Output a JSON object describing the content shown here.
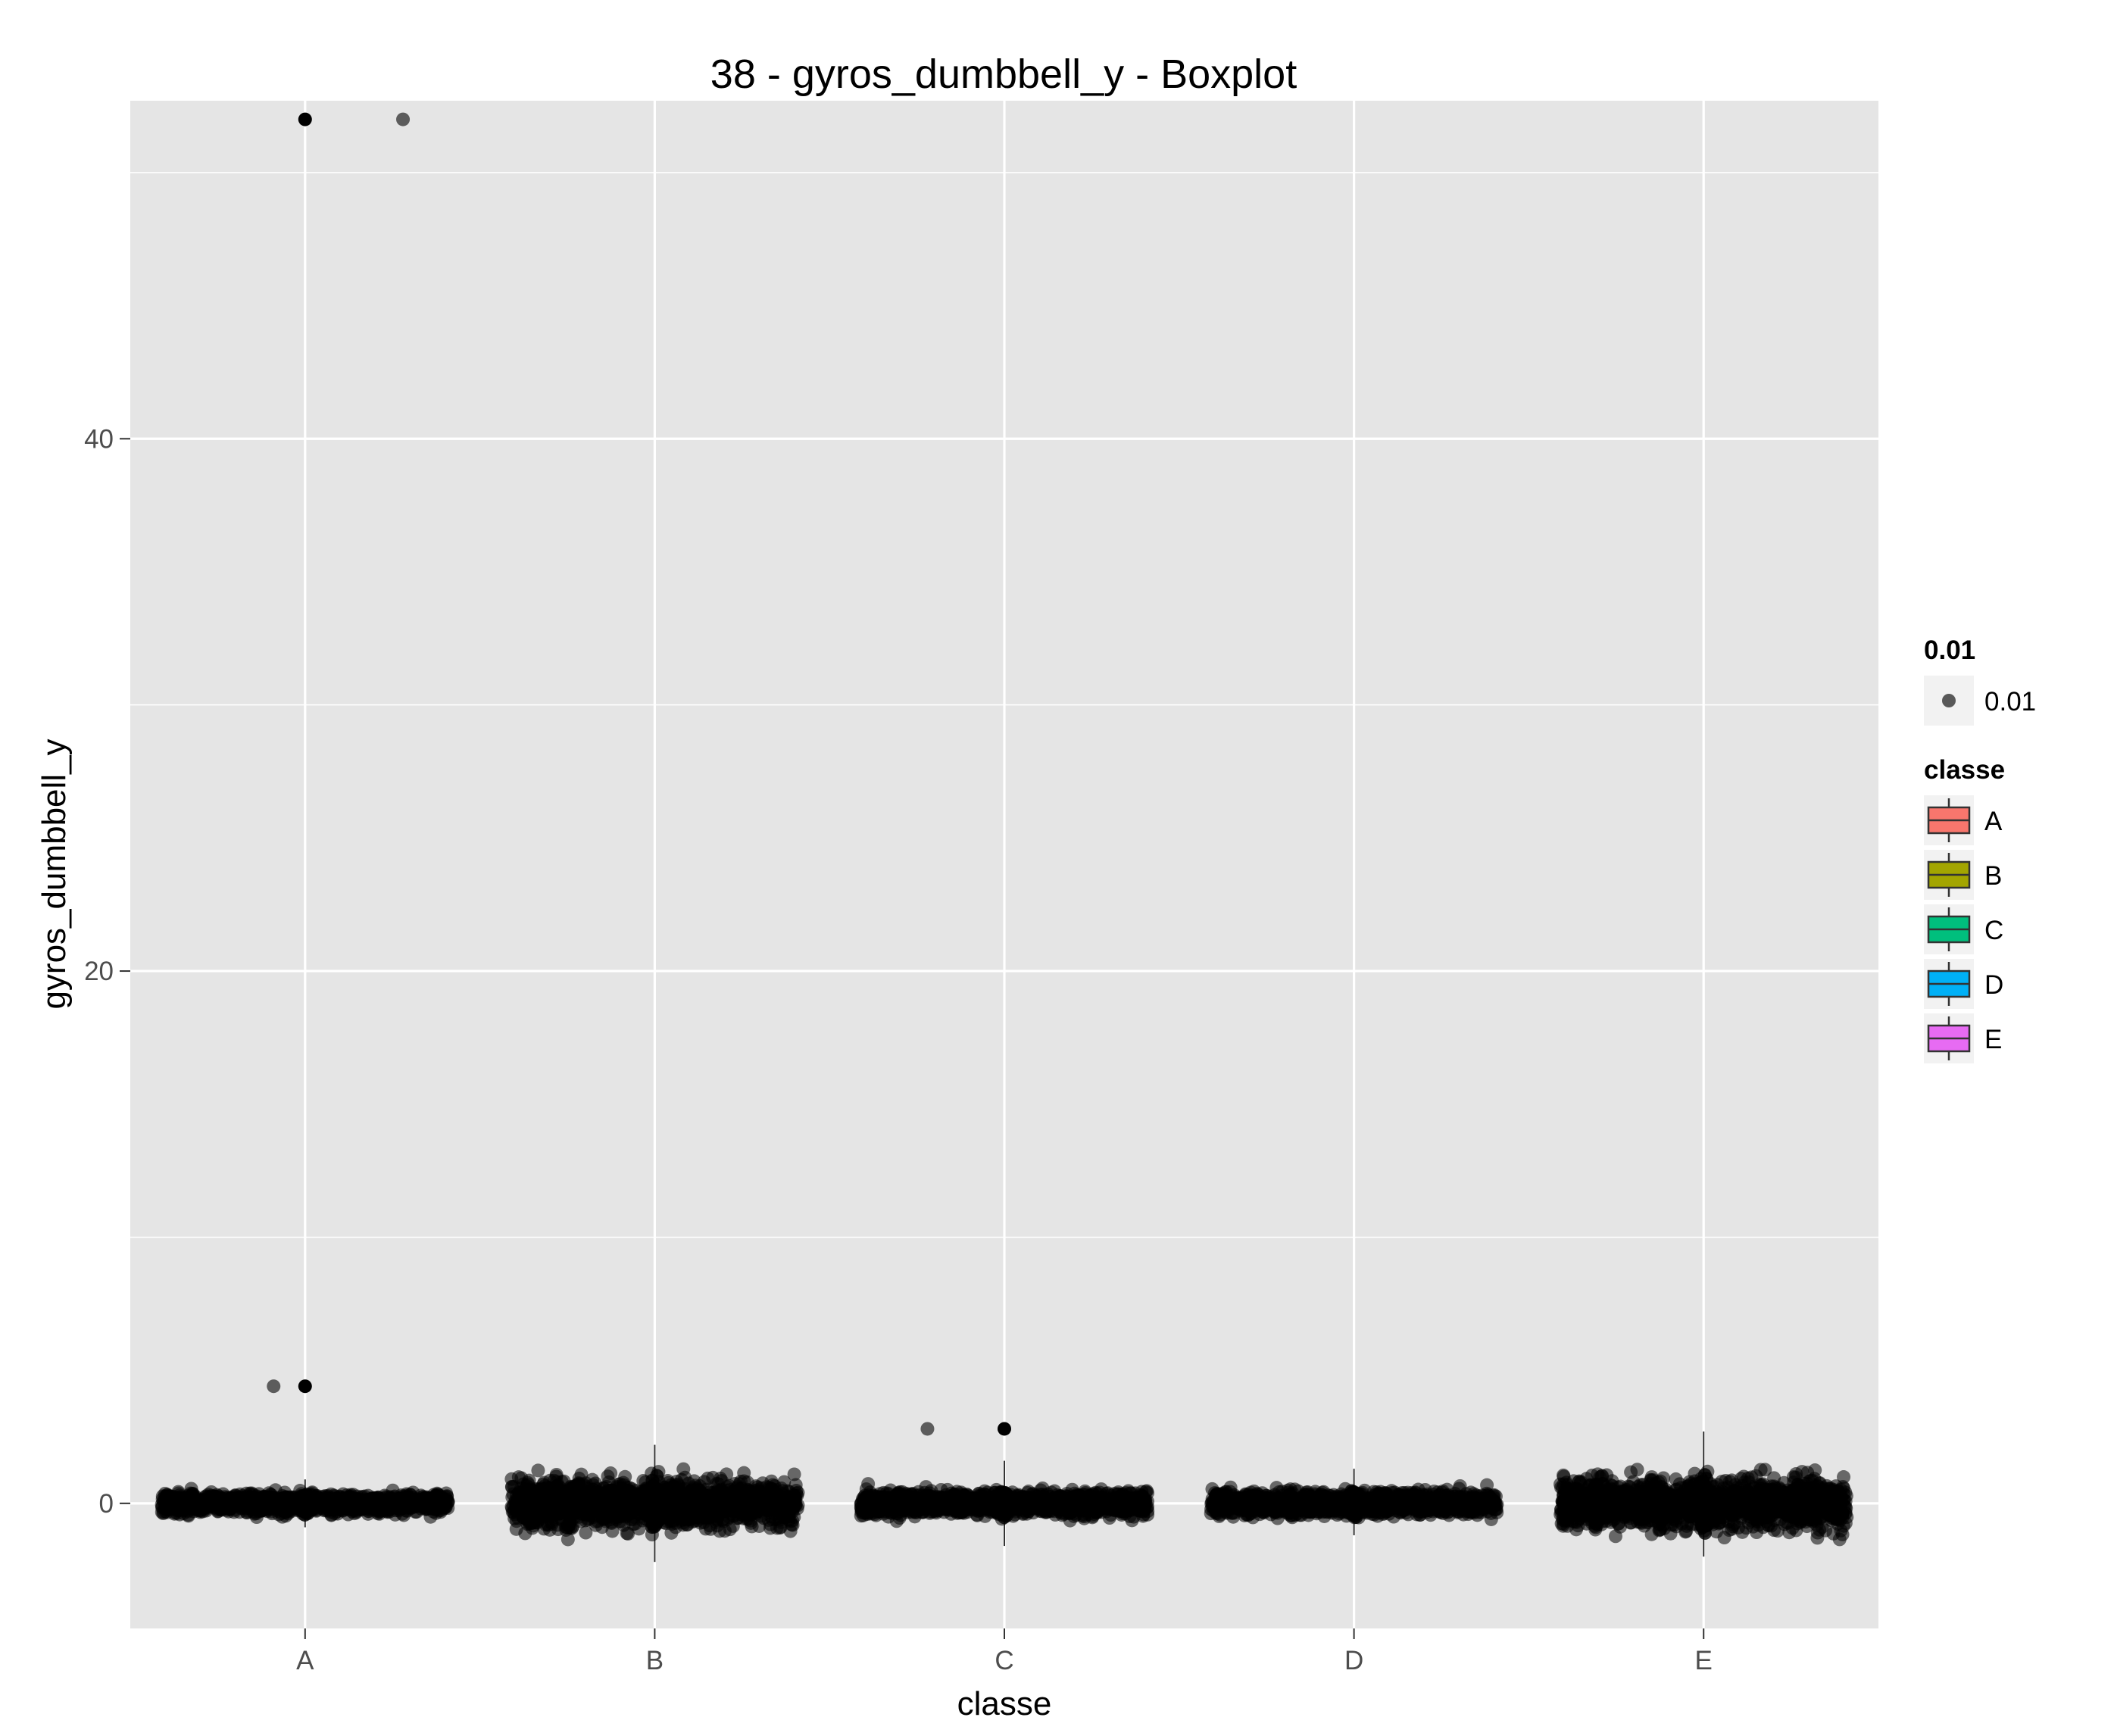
{
  "chart_data": {
    "type": "box",
    "title": "38 - gyros_dumbbell_y - Boxplot",
    "xlabel": "classe",
    "ylabel": "gyros_dumbbell_y",
    "categories": [
      "A",
      "B",
      "C",
      "D",
      "E"
    ],
    "ylim": [
      -4.7,
      52.7
    ],
    "yticks": [
      0,
      20,
      40
    ],
    "grid": true,
    "panel_background": "#e5e5e5",
    "grid_color": "#ffffff",
    "point_color": "#000000",
    "boxes": [
      {
        "category": "A",
        "min": -0.9,
        "q1": -0.2,
        "median": 0.0,
        "q3": 0.2,
        "max": 0.9
      },
      {
        "category": "B",
        "min": -2.2,
        "q1": -0.4,
        "median": 0.0,
        "q3": 0.4,
        "max": 2.2
      },
      {
        "category": "C",
        "min": -1.6,
        "q1": -0.2,
        "median": 0.0,
        "q3": 0.2,
        "max": 1.6
      },
      {
        "category": "D",
        "min": -1.2,
        "q1": -0.2,
        "median": 0.0,
        "q3": 0.2,
        "max": 1.3
      },
      {
        "category": "E",
        "min": -2.0,
        "q1": -0.5,
        "median": 0.0,
        "q3": 0.5,
        "max": 2.7
      }
    ],
    "jitter": [
      {
        "category": "A",
        "spread": 0.45
      },
      {
        "category": "B",
        "spread": 1.1
      },
      {
        "category": "C",
        "spread": 0.55
      },
      {
        "category": "D",
        "spread": 0.55
      },
      {
        "category": "E",
        "spread": 1.2
      }
    ],
    "outliers": [
      {
        "category": "A",
        "x_offset": 0.0,
        "y": 52.0
      },
      {
        "category": "A",
        "x_offset": 0.28,
        "y": 52.0
      },
      {
        "category": "A",
        "x_offset": -0.09,
        "y": 4.4
      },
      {
        "category": "A",
        "x_offset": 0.0,
        "y": 4.4
      },
      {
        "category": "C",
        "x_offset": -0.22,
        "y": 2.8
      },
      {
        "category": "C",
        "x_offset": 0.0,
        "y": 2.8
      }
    ],
    "legends": [
      {
        "title": "0.01",
        "items": [
          {
            "label": "0.01",
            "type": "point",
            "color": "#595959"
          }
        ]
      },
      {
        "title": "classe",
        "items": [
          {
            "label": "A",
            "type": "box",
            "color": "#F8766D"
          },
          {
            "label": "B",
            "type": "box",
            "color": "#A3A500"
          },
          {
            "label": "C",
            "type": "box",
            "color": "#00BF7D"
          },
          {
            "label": "D",
            "type": "box",
            "color": "#00B0F6"
          },
          {
            "label": "E",
            "type": "box",
            "color": "#E76BF3"
          }
        ]
      }
    ],
    "legend_position": "right"
  }
}
